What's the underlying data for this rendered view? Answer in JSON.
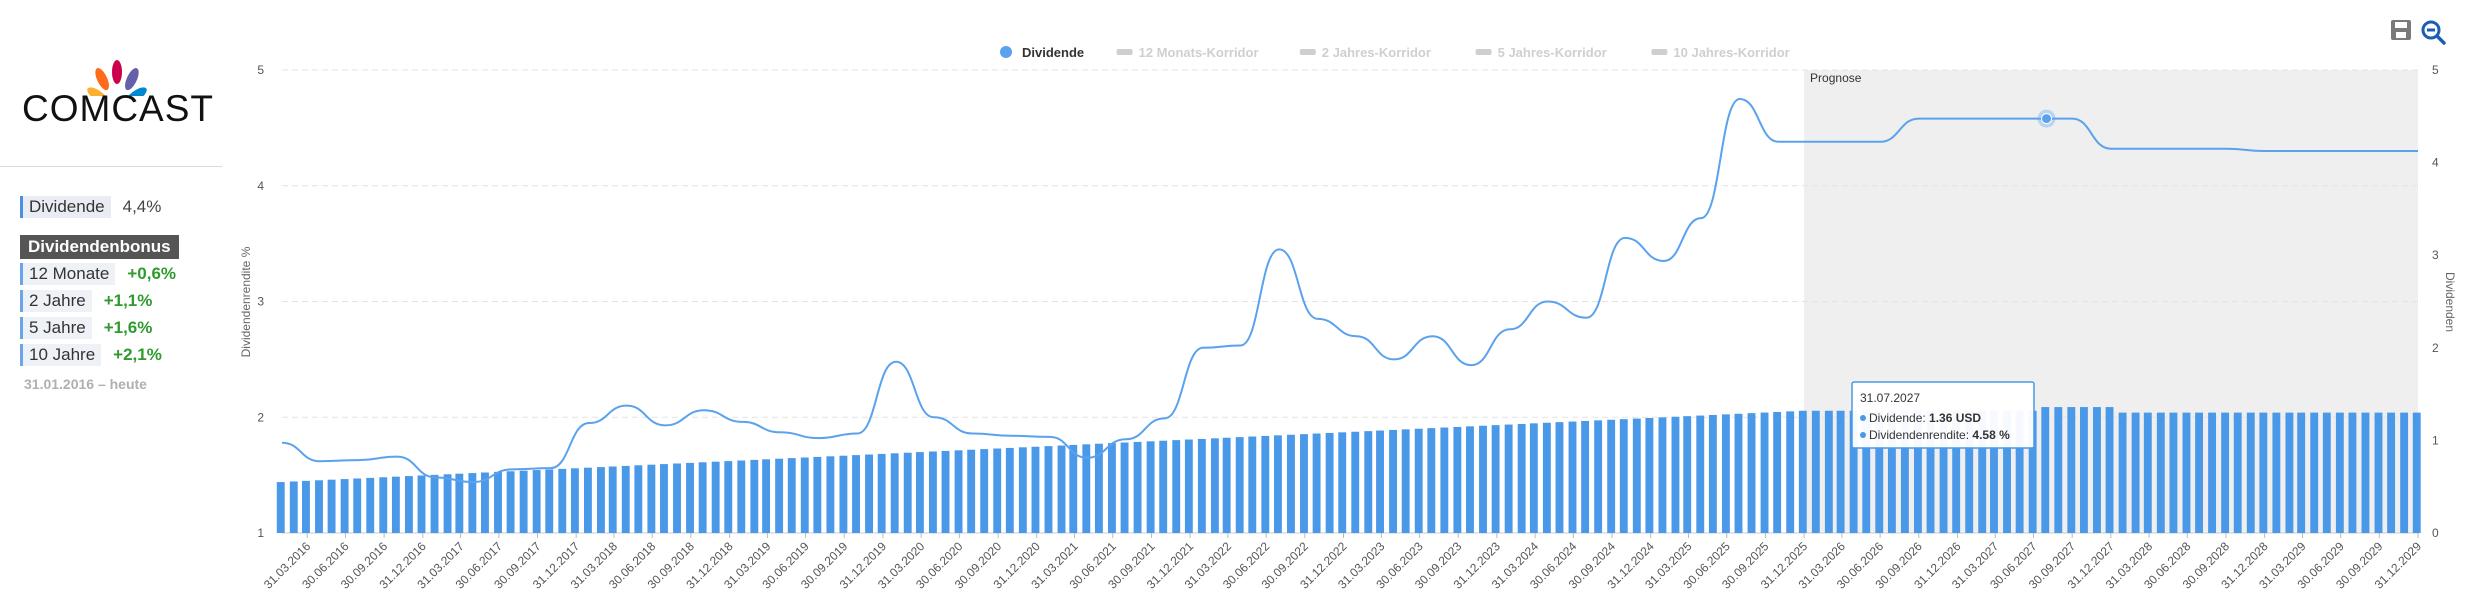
{
  "sidebar": {
    "logo_text": "COMCAST",
    "dividend_label": "Dividende",
    "dividend_value": "4,4%",
    "bonus_title": "Dividendenbonus",
    "bonus_rows": [
      {
        "label": "12 Monate",
        "value": "+0,6%"
      },
      {
        "label": "2 Jahre",
        "value": "+1,1%"
      },
      {
        "label": "5 Jahre",
        "value": "+1,6%"
      },
      {
        "label": "10 Jahre",
        "value": "+2,1%"
      }
    ],
    "period": "31.01.2016 – heute"
  },
  "toolbar": {
    "save_icon": "save-icon",
    "zoom_out_icon": "zoom-out-icon"
  },
  "tooltip": {
    "date": "31.07.2027",
    "dividend_label": "Dividende:",
    "dividend_value": "1.36 USD",
    "yield_label": "Dividendenrendite:",
    "yield_value": "4.58 %"
  },
  "chart_data": {
    "type": "line",
    "legend": [
      {
        "name": "Dividende",
        "active": true,
        "color": "#5aa2ee"
      },
      {
        "name": "12 Monats-Korridor",
        "active": false,
        "color": "#cfcfcf"
      },
      {
        "name": "2 Jahres-Korridor",
        "active": false,
        "color": "#cfcfcf"
      },
      {
        "name": "5 Jahres-Korridor",
        "active": false,
        "color": "#cfcfcf"
      },
      {
        "name": "10 Jahres-Korridor",
        "active": false,
        "color": "#cfcfcf"
      }
    ],
    "legend_position": "top-center",
    "ylabel_left": "Dividendenrendite %",
    "ylabel_right": "Dividenden",
    "ylim_left": [
      1,
      5
    ],
    "ylim_right": [
      0,
      5
    ],
    "yticks_left": [
      "1",
      "2",
      "3",
      "4",
      "5"
    ],
    "yticks_right": [
      "0",
      "1",
      "2",
      "3",
      "4",
      "5"
    ],
    "forecast_label": "Prognose",
    "forecast_start": "31.12.2025",
    "grid": "horizontal-dashed",
    "x_ticks": [
      "31.03.2016",
      "30.06.2016",
      "30.09.2016",
      "31.12.2016",
      "31.03.2017",
      "30.06.2017",
      "30.09.2017",
      "31.12.2017",
      "31.03.2018",
      "30.06.2018",
      "30.09.2018",
      "31.12.2018",
      "31.03.2019",
      "30.06.2019",
      "30.09.2019",
      "31.12.2019",
      "31.03.2020",
      "30.06.2020",
      "30.09.2020",
      "31.12.2020",
      "31.03.2021",
      "30.06.2021",
      "30.09.2021",
      "31.12.2021",
      "31.03.2022",
      "30.06.2022",
      "30.09.2022",
      "31.12.2022",
      "31.03.2023",
      "30.06.2023",
      "30.09.2023",
      "31.12.2023",
      "31.03.2024",
      "30.06.2024",
      "30.09.2024",
      "31.12.2024",
      "31.03.2025",
      "30.06.2025",
      "30.09.2025",
      "31.12.2025",
      "31.03.2026",
      "30.06.2026",
      "30.09.2026",
      "31.12.2026",
      "31.03.2027",
      "30.06.2027",
      "30.09.2027",
      "31.12.2027",
      "31.03.2028",
      "30.06.2028",
      "30.09.2028",
      "31.12.2028",
      "31.03.2029",
      "30.06.2029",
      "30.09.2029",
      "31.12.2029"
    ],
    "yield_series": {
      "name": "Dividende",
      "x": [
        "31.01.2016",
        "30.04.2016",
        "31.07.2016",
        "31.10.2016",
        "31.01.2017",
        "30.04.2017",
        "31.07.2017",
        "31.10.2017",
        "31.01.2018",
        "30.04.2018",
        "31.07.2018",
        "31.10.2018",
        "31.01.2019",
        "30.04.2019",
        "31.07.2019",
        "31.10.2019",
        "31.01.2020",
        "30.04.2020",
        "31.07.2020",
        "31.10.2020",
        "31.01.2021",
        "30.04.2021",
        "31.07.2021",
        "31.10.2021",
        "31.01.2022",
        "30.04.2022",
        "31.07.2022",
        "31.10.2022",
        "31.01.2023",
        "30.04.2023",
        "31.07.2023",
        "31.10.2023",
        "31.01.2024",
        "30.04.2024",
        "31.07.2024",
        "31.10.2024",
        "31.01.2025",
        "30.04.2025",
        "31.07.2025",
        "31.10.2025",
        "31.12.2025",
        "31.03.2026",
        "30.06.2026",
        "30.09.2026",
        "31.12.2026",
        "31.03.2027",
        "31.07.2027",
        "30.09.2027",
        "31.12.2027",
        "31.03.2028",
        "30.06.2028",
        "30.09.2028",
        "31.12.2028",
        "31.03.2029",
        "30.06.2029",
        "30.09.2029",
        "31.12.2029"
      ],
      "values": [
        1.78,
        1.62,
        1.63,
        1.66,
        1.48,
        1.44,
        1.55,
        1.56,
        1.95,
        2.1,
        1.93,
        2.06,
        1.96,
        1.87,
        1.82,
        1.86,
        2.48,
        2.0,
        1.86,
        1.84,
        1.83,
        1.65,
        1.81,
        1.99,
        2.6,
        2.62,
        3.45,
        2.85,
        2.7,
        2.5,
        2.7,
        2.45,
        2.76,
        3.0,
        2.86,
        3.55,
        3.35,
        3.72,
        4.75,
        4.38,
        4.38,
        4.38,
        4.38,
        4.58,
        4.58,
        4.58,
        4.58,
        4.58,
        4.32,
        4.32,
        4.32,
        4.32,
        4.3,
        4.3,
        4.3,
        4.3,
        4.3
      ]
    },
    "dividend_bars": {
      "name": "Dividenden",
      "start": "31.01.2016",
      "frequency": "monthly",
      "count": 168,
      "start_value": 0.55,
      "end_2025": 1.32,
      "forecast_value_2026": 1.32,
      "forecast_value_2027": 1.36,
      "forecast_value_2028_2029": 1.3
    },
    "highlight": {
      "date": "31.07.2027",
      "yield": 4.58,
      "dividend": 1.36
    }
  }
}
